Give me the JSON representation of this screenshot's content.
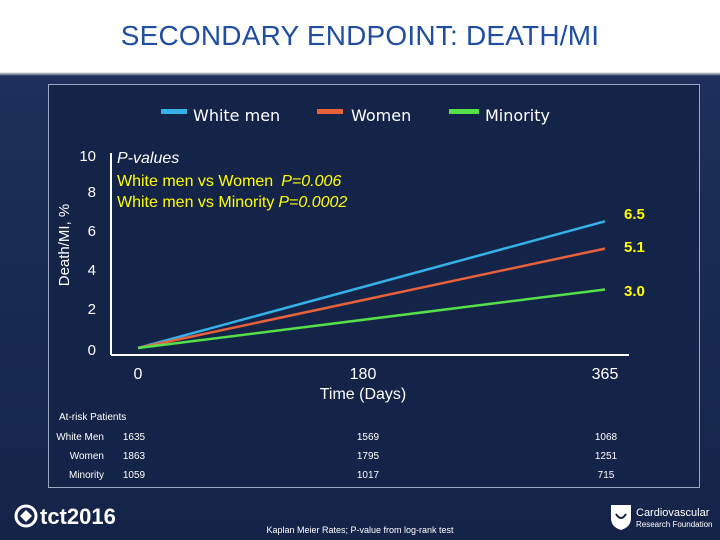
{
  "slide": {
    "title": "SECONDARY ENDPOINT: DEATH/MI"
  },
  "colors": {
    "white_men": "#33b1e8",
    "women": "#e8613a",
    "minority": "#54e049",
    "pvalue_text": "#ffff00",
    "endpoint_label": "#ffff00"
  },
  "chart_data": {
    "type": "line",
    "ylabel": "Death/MI, %",
    "xlabel": "Time (Days)",
    "ylim": [
      0,
      10
    ],
    "xlim": [
      0,
      365
    ],
    "yticks": [
      "0",
      "2",
      "4",
      "6",
      "8",
      "10"
    ],
    "xticks": [
      "0",
      "180",
      "365"
    ],
    "grid": false,
    "legend": {
      "placement": "top",
      "entries": [
        "White men",
        "Women",
        "Minority"
      ]
    },
    "series": [
      {
        "name": "White men",
        "x": [
          0,
          365
        ],
        "y": [
          0,
          6.5
        ],
        "end_label": "6.5"
      },
      {
        "name": "Women",
        "x": [
          0,
          365
        ],
        "y": [
          0,
          5.1
        ],
        "end_label": "5.1"
      },
      {
        "name": "Minority",
        "x": [
          0,
          365
        ],
        "y": [
          0,
          3.0
        ],
        "end_label": "3.0"
      }
    ],
    "annotation": {
      "heading": "P-values",
      "lines": [
        {
          "comparison": "White men vs Women",
          "p_label": "P=0.006"
        },
        {
          "comparison": "White men vs Minority",
          "p_label": "P=0.0002"
        }
      ]
    }
  },
  "at_risk": {
    "title": "At-risk Patients",
    "rows": [
      {
        "label": "White Men",
        "values": [
          "1635",
          "1569",
          "1068"
        ]
      },
      {
        "label": "Women",
        "values": [
          "1863",
          "1795",
          "1251"
        ]
      },
      {
        "label": "Minority",
        "values": [
          "1059",
          "1017",
          "715"
        ]
      }
    ]
  },
  "footnote": "Kaplan Meier Rates; P-value from log-rank test",
  "logos": {
    "left": {
      "text": "tct2016"
    },
    "right": {
      "line1": "Cardiovascular",
      "line2": "Research Foundation"
    }
  }
}
